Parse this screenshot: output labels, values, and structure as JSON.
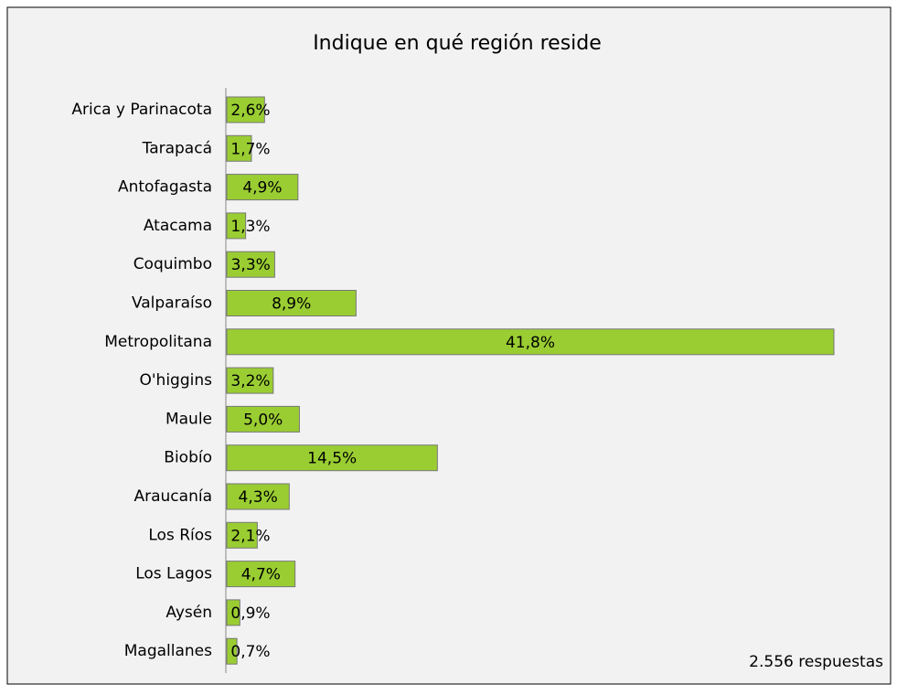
{
  "chart_data": {
    "type": "bar",
    "orientation": "horizontal",
    "title": "Indique en qué región reside",
    "categories": [
      "Arica y Parinacota",
      "Tarapacá",
      "Antofagasta",
      "Atacama",
      "Coquimbo",
      "Valparaíso",
      "Metropolitana",
      "O'higgins",
      "Maule",
      "Biobío",
      "Araucanía",
      "Los Ríos",
      "Los Lagos",
      "Aysén",
      "Magallanes"
    ],
    "values": [
      2.6,
      1.7,
      4.9,
      1.3,
      3.3,
      8.9,
      41.8,
      3.2,
      5.0,
      14.5,
      4.3,
      2.1,
      4.7,
      0.9,
      0.7
    ],
    "value_labels": [
      "2,6%",
      "1,7%",
      "4,9%",
      "1,3%",
      "3,3%",
      "8,9%",
      "41,8%",
      "3,2%",
      "5,0%",
      "14,5%",
      "4,3%",
      "2,1%",
      "4,7%",
      "0,9%",
      "0,7%"
    ],
    "color": "#9acd32",
    "annotation": "2.556 respuestas"
  }
}
